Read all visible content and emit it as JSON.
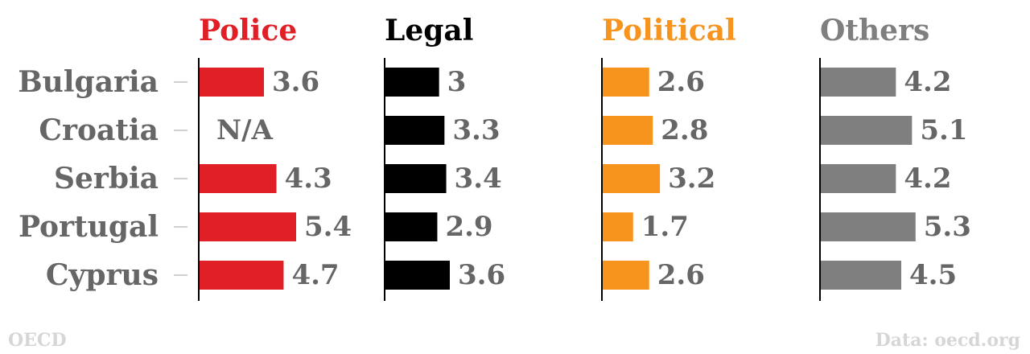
{
  "chart_data": {
    "type": "bar",
    "categories": [
      "Bulgaria",
      "Croatia",
      "Serbia",
      "Portugal",
      "Cyprus"
    ],
    "series": [
      {
        "name": "Police",
        "color": "#e01f26",
        "values": [
          3.6,
          null,
          4.3,
          5.4,
          4.7
        ],
        "labels": [
          "3.6",
          "N/A",
          "4.3",
          "5.4",
          "4.7"
        ]
      },
      {
        "name": "Legal",
        "color": "#000000",
        "values": [
          3,
          3.3,
          3.4,
          2.9,
          3.6
        ],
        "labels": [
          "3",
          "3.3",
          "3.4",
          "2.9",
          "3.6"
        ]
      },
      {
        "name": "Political",
        "color": "#f7941d",
        "values": [
          2.6,
          2.8,
          3.2,
          1.7,
          2.6
        ],
        "labels": [
          "2.6",
          "2.8",
          "3.2",
          "1.7",
          "2.6"
        ]
      },
      {
        "name": "Others",
        "color": "#7f7f7f",
        "values": [
          4.2,
          5.1,
          4.2,
          5.3,
          4.5
        ],
        "labels": [
          "4.2",
          "5.1",
          "4.2",
          "5.3",
          "4.5"
        ]
      }
    ],
    "xlim": [
      0,
      5.4
    ],
    "grid": false,
    "legend": "none"
  },
  "colors": {
    "category_text": "#666666",
    "value_text": "#666666",
    "footer_text": "#d6d6d6",
    "axis": "#000000",
    "tick": "#d0d0d0"
  },
  "footer": {
    "left": "OECD",
    "right": "Data: oecd.org"
  }
}
